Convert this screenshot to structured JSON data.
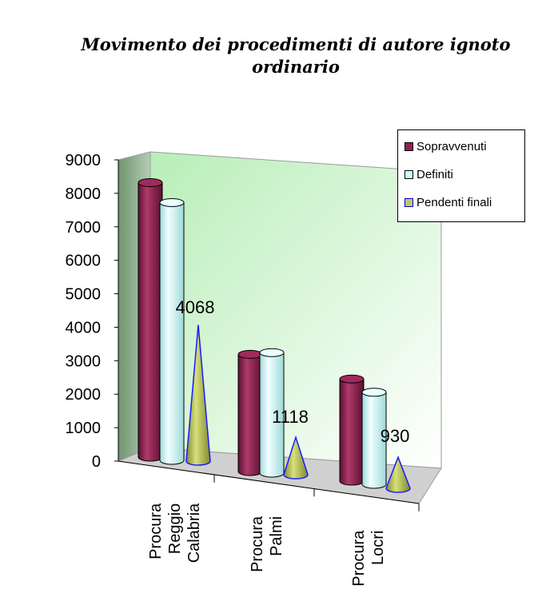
{
  "chart_data": {
    "type": "bar",
    "title": "Movimento dei procedimenti di autore ignoto ordinario",
    "categories": [
      [
        "Procura",
        "Reggio",
        "Calabria"
      ],
      [
        "Procura",
        "Palmi"
      ],
      [
        "Procura",
        "Locri"
      ]
    ],
    "series": [
      {
        "name": "Sopravvenuti",
        "shape": "cylinder",
        "color": "#8b2252",
        "values": [
          8200,
          3500,
          3050
        ]
      },
      {
        "name": "Definiti",
        "shape": "cylinder",
        "color": "#ccffff",
        "values": [
          7700,
          3600,
          2750
        ]
      },
      {
        "name": "Pendenti finali",
        "shape": "cone",
        "color": "#bcc96a",
        "values": [
          4068,
          1118,
          930
        ]
      }
    ],
    "data_labels": [
      "4068",
      "1118",
      "930"
    ],
    "y_ticks": [
      "0",
      "1000",
      "2000",
      "3000",
      "4000",
      "5000",
      "6000",
      "7000",
      "8000",
      "9000"
    ],
    "ylim": [
      0,
      9000
    ],
    "grid": false,
    "legend_position": "right",
    "background": {
      "wall_gradient": [
        "#bdf0bd",
        "#ffffff"
      ],
      "side_wall": "#8fb08f"
    }
  }
}
